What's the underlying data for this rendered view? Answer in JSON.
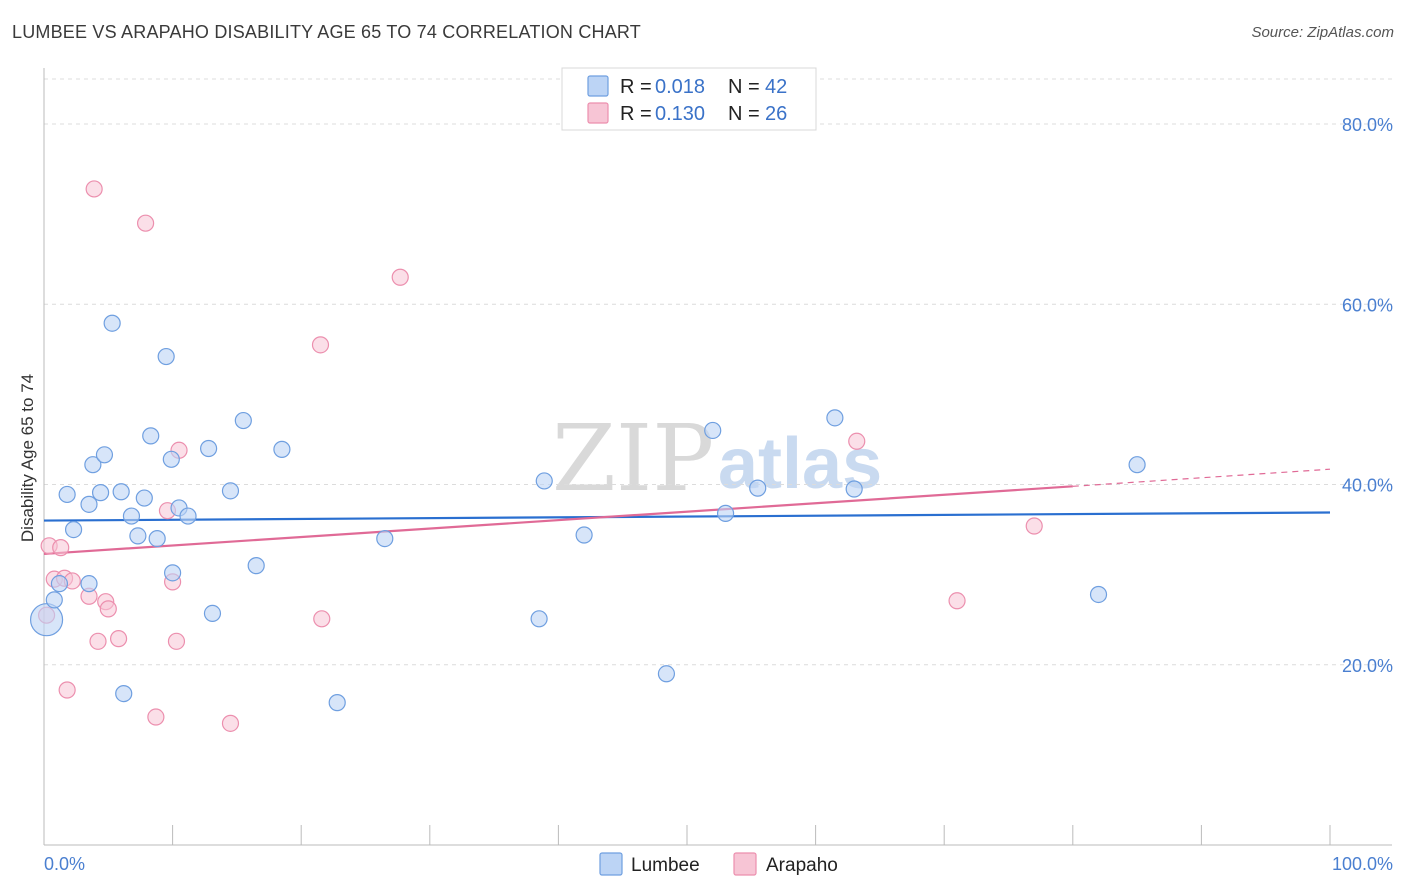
{
  "header": {
    "title": "LUMBEE VS ARAPAHO DISABILITY AGE 65 TO 74 CORRELATION CHART",
    "source": "Source: ZipAtlas.com"
  },
  "watermark": {
    "zip": "ZIP",
    "atlas": "atlas"
  },
  "colors": {
    "lumbee": "#6f9fe0",
    "lumbee_fill": "#bcd4f5",
    "lumbee_line": "#2a6fd0",
    "arapaho": "#ec8fae",
    "arapaho_fill": "#f7c5d5",
    "arapaho_line": "#e06a96"
  },
  "legend": {
    "lumbee": {
      "r_label": "R =",
      "r_value": "0.018",
      "n_label": "N =",
      "n_value": "42"
    },
    "arapaho": {
      "r_label": "R =",
      "r_value": "0.130",
      "n_label": "N =",
      "n_value": "26"
    }
  },
  "chart_data": {
    "type": "scatter",
    "title": "LUMBEE VS ARAPAHO DISABILITY AGE 65 TO 74 CORRELATION CHART",
    "xlabel": "",
    "ylabel": "Disability Age 65 to 74",
    "xlim": [
      0,
      100
    ],
    "ylim": [
      0,
      85
    ],
    "x_tick_labels": [
      "0.0%",
      "100.0%"
    ],
    "y_ticks": [
      20,
      40,
      60,
      80
    ],
    "y_tick_labels": [
      "20.0%",
      "40.0%",
      "60.0%",
      "80.0%"
    ],
    "grid": true,
    "legend_position": "top-center",
    "series": [
      {
        "name": "Lumbee",
        "r": 0.018,
        "n": 42,
        "trend": {
          "x": [
            0,
            100
          ],
          "y": [
            36.0,
            36.9
          ]
        },
        "points": [
          [
            0.2,
            25.0
          ],
          [
            0.8,
            27.2
          ],
          [
            1.2,
            29.0
          ],
          [
            1.8,
            38.9
          ],
          [
            2.3,
            35.0
          ],
          [
            3.5,
            29.0
          ],
          [
            3.5,
            37.8
          ],
          [
            3.8,
            42.2
          ],
          [
            4.4,
            39.1
          ],
          [
            4.7,
            43.3
          ],
          [
            5.3,
            57.9
          ],
          [
            6.0,
            39.2
          ],
          [
            6.2,
            16.8
          ],
          [
            6.8,
            36.5
          ],
          [
            7.3,
            34.3
          ],
          [
            7.8,
            38.5
          ],
          [
            8.3,
            45.4
          ],
          [
            8.8,
            34.0
          ],
          [
            9.5,
            54.2
          ],
          [
            9.9,
            42.8
          ],
          [
            10.0,
            30.2
          ],
          [
            10.5,
            37.4
          ],
          [
            11.2,
            36.5
          ],
          [
            12.8,
            44.0
          ],
          [
            13.1,
            25.7
          ],
          [
            14.5,
            39.3
          ],
          [
            15.5,
            47.1
          ],
          [
            16.5,
            31.0
          ],
          [
            18.5,
            43.9
          ],
          [
            22.8,
            15.8
          ],
          [
            26.5,
            34.0
          ],
          [
            38.5,
            25.1
          ],
          [
            38.9,
            40.4
          ],
          [
            42.0,
            34.4
          ],
          [
            48.4,
            19.0
          ],
          [
            52.0,
            46.0
          ],
          [
            53.0,
            36.8
          ],
          [
            55.5,
            39.6
          ],
          [
            61.5,
            47.4
          ],
          [
            63.0,
            39.5
          ],
          [
            82.0,
            27.8
          ],
          [
            85.0,
            42.2
          ]
        ]
      },
      {
        "name": "Arapaho",
        "r": 0.13,
        "n": 26,
        "trend": {
          "x": [
            0,
            80
          ],
          "y": [
            32.3,
            39.8
          ],
          "dash_x": [
            80,
            100
          ],
          "dash_y": [
            39.8,
            41.7
          ]
        },
        "points": [
          [
            0.2,
            25.5
          ],
          [
            0.4,
            33.2
          ],
          [
            0.8,
            29.5
          ],
          [
            1.3,
            33.0
          ],
          [
            1.6,
            29.6
          ],
          [
            1.8,
            17.2
          ],
          [
            2.2,
            29.3
          ],
          [
            3.5,
            27.6
          ],
          [
            4.2,
            22.6
          ],
          [
            4.8,
            27.0
          ],
          [
            5.0,
            26.2
          ],
          [
            5.8,
            22.9
          ],
          [
            3.9,
            72.8
          ],
          [
            7.9,
            69.0
          ],
          [
            8.7,
            14.2
          ],
          [
            9.6,
            37.1
          ],
          [
            10.0,
            29.2
          ],
          [
            10.3,
            22.6
          ],
          [
            10.5,
            43.8
          ],
          [
            14.5,
            13.5
          ],
          [
            21.5,
            55.5
          ],
          [
            21.6,
            25.1
          ],
          [
            27.7,
            63.0
          ],
          [
            63.2,
            44.8
          ],
          [
            71.0,
            27.1
          ],
          [
            77.0,
            35.4
          ]
        ]
      }
    ]
  },
  "bottom_legend": {
    "lumbee": "Lumbee",
    "arapaho": "Arapaho"
  }
}
